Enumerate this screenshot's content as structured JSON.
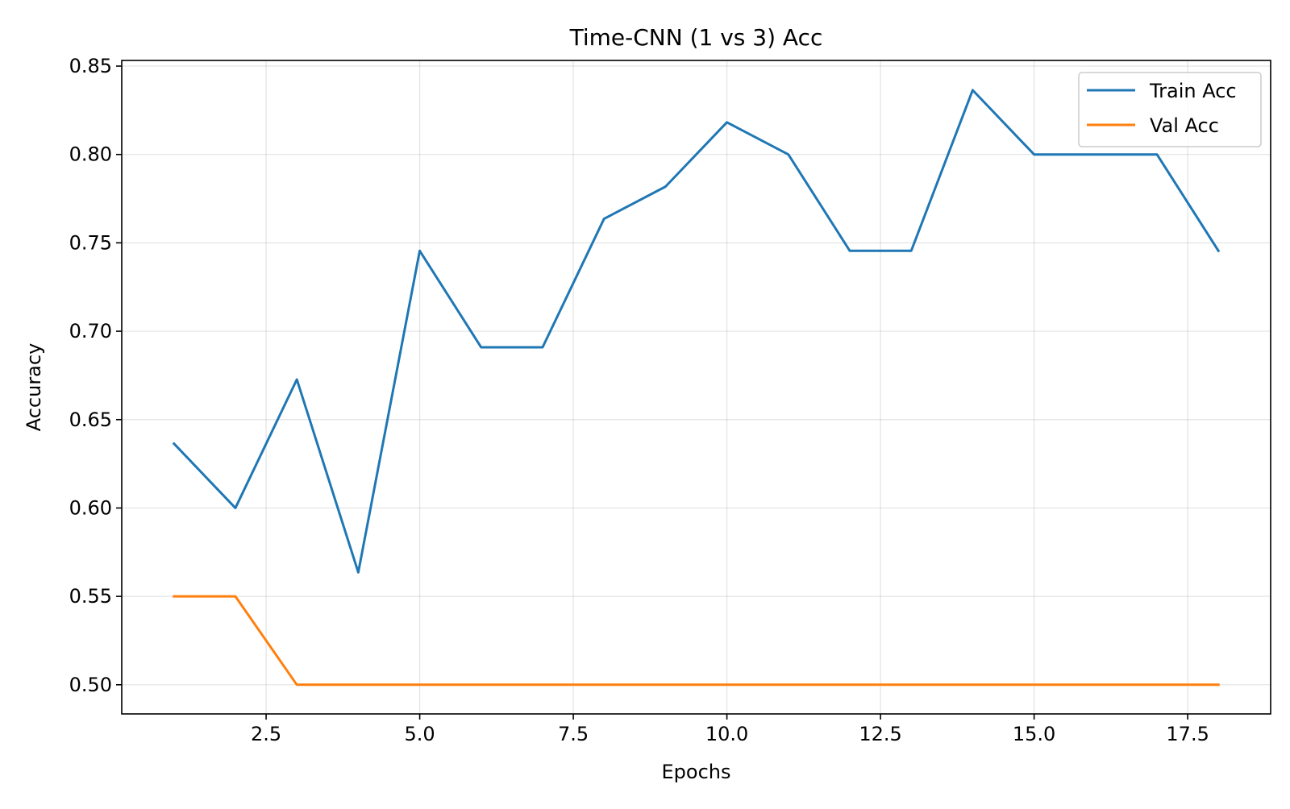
{
  "chart_data": {
    "type": "line",
    "title": "Time-CNN (1 vs 3) Acc",
    "xlabel": "Epochs",
    "ylabel": "Accuracy",
    "x": [
      1,
      2,
      3,
      4,
      5,
      6,
      7,
      8,
      9,
      10,
      11,
      12,
      13,
      14,
      15,
      16,
      17,
      18
    ],
    "xlim": [
      0.15,
      18.85
    ],
    "ylim": [
      0.4835,
      0.8532
    ],
    "xticks": [
      2.5,
      5.0,
      7.5,
      10.0,
      12.5,
      15.0,
      17.5
    ],
    "xtick_labels": [
      "2.5",
      "5.0",
      "7.5",
      "10.0",
      "12.5",
      "15.0",
      "17.5"
    ],
    "yticks": [
      0.5,
      0.55,
      0.6,
      0.65,
      0.7,
      0.75,
      0.8,
      0.85
    ],
    "ytick_labels": [
      "0.50",
      "0.55",
      "0.60",
      "0.65",
      "0.70",
      "0.75",
      "0.80",
      "0.85"
    ],
    "grid": true,
    "legend_position": "top-right",
    "series": [
      {
        "name": "Train Acc",
        "color": "#1f77b4",
        "values": [
          0.6364,
          0.6,
          0.6727,
          0.5636,
          0.7455,
          0.6909,
          0.6909,
          0.7636,
          0.7818,
          0.8182,
          0.8,
          0.7455,
          0.7455,
          0.8364,
          0.8,
          0.8,
          0.8,
          0.7455
        ]
      },
      {
        "name": "Val Acc",
        "color": "#ff7f0e",
        "values": [
          0.55,
          0.55,
          0.5,
          0.5,
          0.5,
          0.5,
          0.5,
          0.5,
          0.5,
          0.5,
          0.5,
          0.5,
          0.5,
          0.5,
          0.5,
          0.5,
          0.5,
          0.5
        ]
      }
    ]
  }
}
